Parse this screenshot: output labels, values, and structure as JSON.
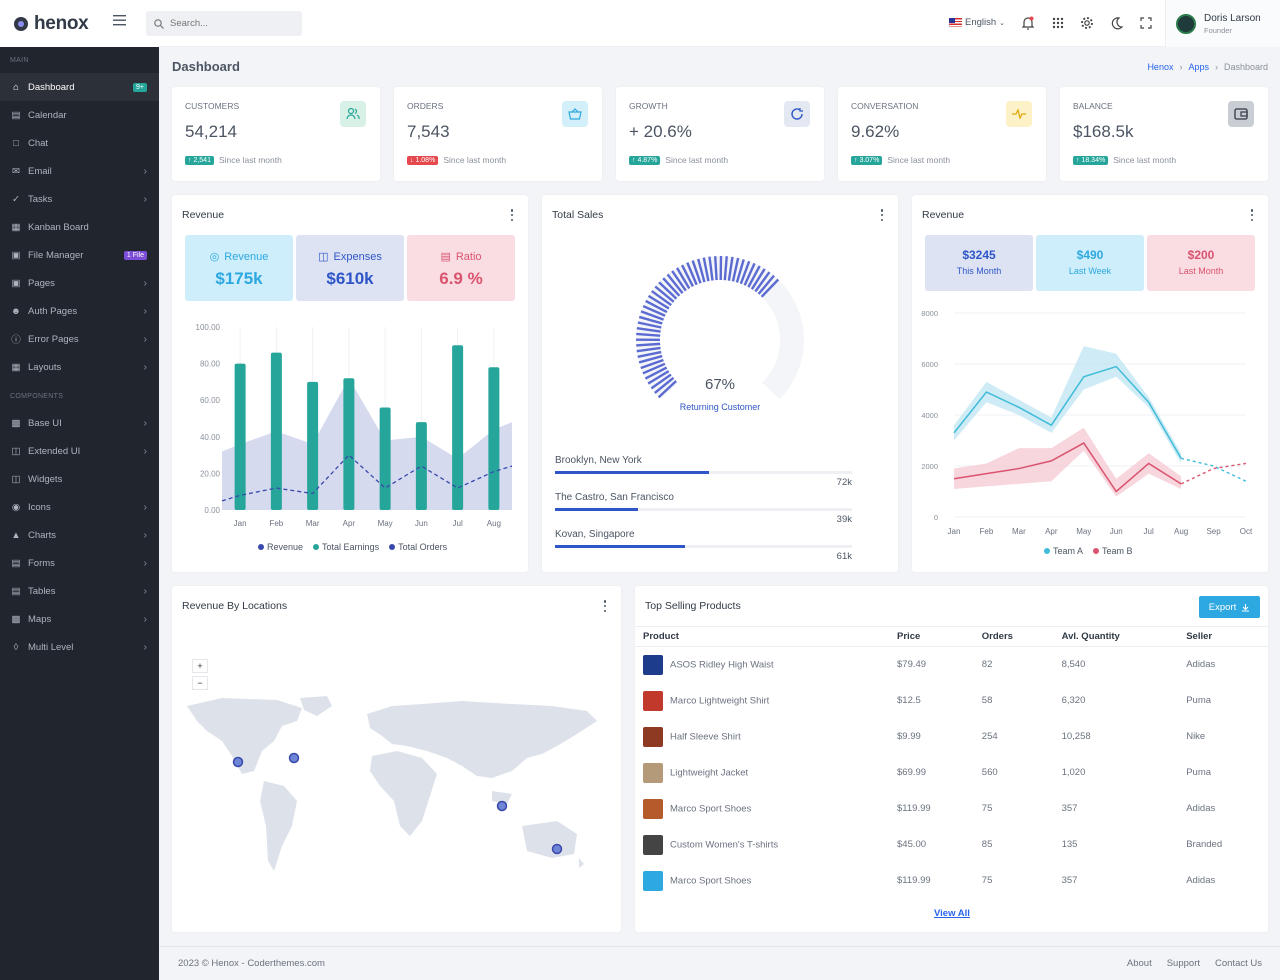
{
  "brand": {
    "name": "henox"
  },
  "search": {
    "placeholder": "Search..."
  },
  "topbar": {
    "language": "English"
  },
  "user": {
    "name": "Doris Larson",
    "role": "Founder"
  },
  "sidebar": {
    "main_label": "MAIN",
    "components_label": "COMPONENTS",
    "main_items": [
      {
        "label": "Dashboard",
        "badge": "9+"
      },
      {
        "label": "Calendar"
      },
      {
        "label": "Chat"
      },
      {
        "label": "Email"
      },
      {
        "label": "Tasks"
      },
      {
        "label": "Kanban Board"
      },
      {
        "label": "File Manager",
        "badge": "1 File"
      },
      {
        "label": "Pages"
      },
      {
        "label": "Auth Pages"
      },
      {
        "label": "Error Pages"
      },
      {
        "label": "Layouts"
      }
    ],
    "component_items": [
      {
        "label": "Base UI"
      },
      {
        "label": "Extended UI"
      },
      {
        "label": "Widgets"
      },
      {
        "label": "Icons"
      },
      {
        "label": "Charts"
      },
      {
        "label": "Forms"
      },
      {
        "label": "Tables"
      },
      {
        "label": "Maps"
      },
      {
        "label": "Multi Level"
      }
    ]
  },
  "page": {
    "title": "Dashboard",
    "breadcrumb": [
      "Henox",
      "Apps",
      "Dashboard"
    ]
  },
  "stats": [
    {
      "label": "CUSTOMERS",
      "value": "54,214",
      "change": "2,541",
      "direction": "up",
      "note": "Since last month",
      "icon": "users-icon"
    },
    {
      "label": "ORDERS",
      "value": "7,543",
      "change": "1.08%",
      "direction": "down",
      "note": "Since last month",
      "icon": "basket-icon"
    },
    {
      "label": "GROWTH",
      "value": "+ 20.6%",
      "change": "4.87%",
      "direction": "up",
      "note": "Since last month",
      "icon": "refresh-icon"
    },
    {
      "label": "CONVERSATION",
      "value": "9.62%",
      "change": "3.07%",
      "direction": "up",
      "note": "Since last month",
      "icon": "pulse-icon"
    },
    {
      "label": "BALANCE",
      "value": "$168.5k",
      "change": "18.34%",
      "direction": "up",
      "note": "Since last month",
      "icon": "wallet-icon"
    }
  ],
  "revenue_card": {
    "title": "Revenue",
    "boxes": [
      {
        "label": "Revenue",
        "value": "$175k"
      },
      {
        "label": "Expenses",
        "value": "$610k"
      },
      {
        "label": "Ratio",
        "value": "6.9 %"
      }
    ],
    "legend": [
      "Revenue",
      "Total Earnings",
      "Total Orders"
    ]
  },
  "total_sales": {
    "title": "Total Sales",
    "percent": "67%",
    "caption": "Returning Customer",
    "locations": [
      {
        "name": "Brooklyn, New York",
        "value": "72k",
        "fill": 0.72
      },
      {
        "name": "The Castro, San Francisco",
        "value": "39k",
        "fill": 0.39
      },
      {
        "name": "Kovan, Singapore",
        "value": "61k",
        "fill": 0.61
      }
    ]
  },
  "revenue_card2": {
    "title": "Revenue",
    "boxes": [
      {
        "value": "$3245",
        "label": "This Month"
      },
      {
        "value": "$490",
        "label": "Last Week"
      },
      {
        "value": "$200",
        "label": "Last Month"
      }
    ],
    "legend": [
      "Team A",
      "Team B"
    ]
  },
  "map_card": {
    "title": "Revenue By Locations",
    "zoom_in": "+",
    "zoom_out": "−"
  },
  "products": {
    "title": "Top Selling Products",
    "export_label": "Export",
    "columns": [
      "Product",
      "Price",
      "Orders",
      "Avl. Quantity",
      "Seller"
    ],
    "rows": [
      [
        "ASOS Ridley High Waist",
        "$79.49",
        "82",
        "8,540",
        "Adidas"
      ],
      [
        "Marco Lightweight Shirt",
        "$12.5",
        "58",
        "6,320",
        "Puma"
      ],
      [
        "Half Sleeve Shirt",
        "$9.99",
        "254",
        "10,258",
        "Nike"
      ],
      [
        "Lightweight Jacket",
        "$69.99",
        "560",
        "1,020",
        "Puma"
      ],
      [
        "Marco Sport Shoes",
        "$119.99",
        "75",
        "357",
        "Adidas"
      ],
      [
        "Custom Women's T-shirts",
        "$45.00",
        "85",
        "135",
        "Branded"
      ],
      [
        "Marco Sport Shoes",
        "$119.99",
        "75",
        "357",
        "Adidas"
      ]
    ],
    "view_all": "View All"
  },
  "footer": {
    "copyright": "2023 © Henox - Coderthemes.com",
    "links": [
      "About",
      "Support",
      "Contact Us"
    ]
  },
  "colors": {
    "teal": "#26a69a",
    "navy": "#3949ab",
    "cyan": "#40bcd8",
    "pink": "#d9546f",
    "accent_blue": "#2563eb"
  },
  "chart_data": [
    {
      "type": "bar",
      "title": "Revenue",
      "categories": [
        "Jan",
        "Feb",
        "Mar",
        "Apr",
        "May",
        "Jun",
        "Jul",
        "Aug"
      ],
      "ylim": [
        0,
        100
      ],
      "yticks": [
        "0.00",
        "20.00",
        "40.00",
        "60.00",
        "80.00",
        "100.00"
      ],
      "series": [
        {
          "name": "Total Earnings",
          "type": "bar",
          "values": [
            80,
            86,
            70,
            72,
            56,
            48,
            90,
            78
          ]
        },
        {
          "name": "Revenue",
          "type": "area",
          "values": [
            36,
            43,
            36,
            72,
            38,
            40,
            28,
            44
          ]
        },
        {
          "name": "Total Orders",
          "type": "line",
          "values": [
            8,
            12,
            9,
            30,
            12,
            24,
            12,
            21
          ]
        }
      ]
    },
    {
      "type": "pie",
      "title": "Total Sales",
      "values": [
        67
      ]
    },
    {
      "type": "line",
      "title": "Revenue",
      "categories": [
        "Jan",
        "Feb",
        "Mar",
        "Apr",
        "May",
        "Jun",
        "Jul",
        "Aug",
        "Sep",
        "Oct"
      ],
      "ylim": [
        0,
        8000
      ],
      "yticks": [
        "0",
        "2000",
        "4000",
        "6000",
        "8000"
      ],
      "series": [
        {
          "name": "Team A",
          "values": [
            3300,
            4900,
            4300,
            3600,
            5500,
            5900,
            4500,
            2300,
            2000,
            1400
          ],
          "band": [
            [
              3000,
              3600
            ],
            [
              4500,
              5300
            ],
            [
              4000,
              4600
            ],
            [
              3300,
              3900
            ],
            [
              5000,
              6700
            ],
            [
              5500,
              6400
            ],
            [
              4300,
              4700
            ],
            [
              2100,
              2500
            ],
            null,
            null
          ]
        },
        {
          "name": "Team B",
          "values": [
            1500,
            1700,
            1900,
            2200,
            2900,
            1000,
            2100,
            1300,
            1900,
            2100
          ],
          "band": [
            [
              1100,
              1900
            ],
            [
              1200,
              2100
            ],
            [
              1300,
              2700
            ],
            [
              1400,
              2700
            ],
            [
              2600,
              3500
            ],
            [
              800,
              1500
            ],
            [
              1700,
              2500
            ],
            [
              1100,
              1600
            ],
            null,
            null
          ]
        }
      ]
    }
  ]
}
